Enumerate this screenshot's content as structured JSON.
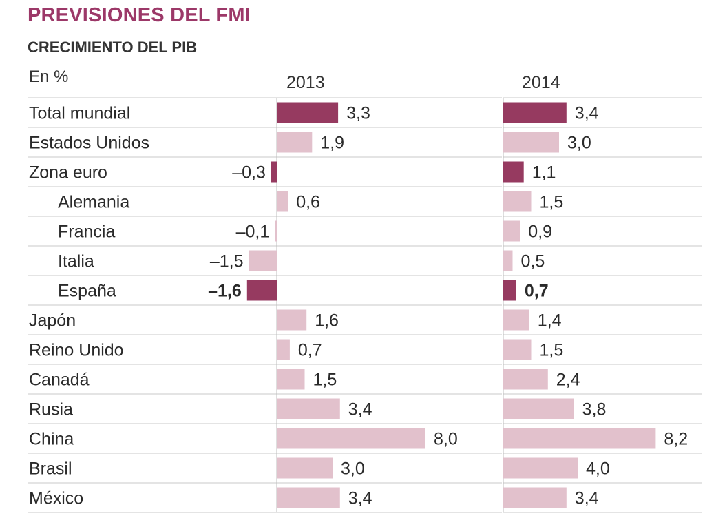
{
  "title": "PREVISIONES DEL FMI",
  "subtitle": "CRECIMIENTO DEL PIB",
  "unit": "En %",
  "colors": {
    "highlight": "#963a60",
    "normal": "#e2c1cc",
    "title": "#9c3868"
  },
  "chart_data": {
    "type": "bar",
    "orientation": "horizontal",
    "title": "PREVISIONES DEL FMI",
    "subtitle": "CRECIMIENTO DEL PIB",
    "unit": "En %",
    "categories": [
      "Total mundial",
      "Estados Unidos",
      "Zona euro",
      "Alemania",
      "Francia",
      "Italia",
      "España",
      "Japón",
      "Reino Unido",
      "Canadá",
      "Rusia",
      "China",
      "Brasil",
      "México"
    ],
    "indented": [
      false,
      false,
      false,
      true,
      true,
      true,
      true,
      false,
      false,
      false,
      false,
      false,
      false,
      false
    ],
    "highlighted": [
      true,
      false,
      true,
      false,
      false,
      false,
      true,
      false,
      false,
      false,
      false,
      false,
      false,
      false
    ],
    "bold_values": [
      false,
      false,
      false,
      false,
      false,
      false,
      true,
      false,
      false,
      false,
      false,
      false,
      false,
      false
    ],
    "series": [
      {
        "name": "2013",
        "values": [
          3.3,
          1.9,
          -0.3,
          0.6,
          -0.1,
          -1.5,
          -1.6,
          1.6,
          0.7,
          1.5,
          3.4,
          8.0,
          3.0,
          3.4
        ],
        "labels": [
          "3,3",
          "1,9",
          "–0,3",
          "0,6",
          "–0,1",
          "–1,5",
          "–1,6",
          "1,6",
          "0,7",
          "1,5",
          "3,4",
          "8,0",
          "3,0",
          "3,4"
        ]
      },
      {
        "name": "2014",
        "values": [
          3.4,
          3.0,
          1.1,
          1.5,
          0.9,
          0.5,
          0.7,
          1.4,
          1.5,
          2.4,
          3.8,
          8.2,
          4.0,
          3.4
        ],
        "labels": [
          "3,4",
          "3,0",
          "1,1",
          "1,5",
          "0,9",
          "0,5",
          "0,7",
          "1,4",
          "1,5",
          "2,4",
          "3,8",
          "8,2",
          "4,0",
          "3,4"
        ]
      }
    ]
  }
}
